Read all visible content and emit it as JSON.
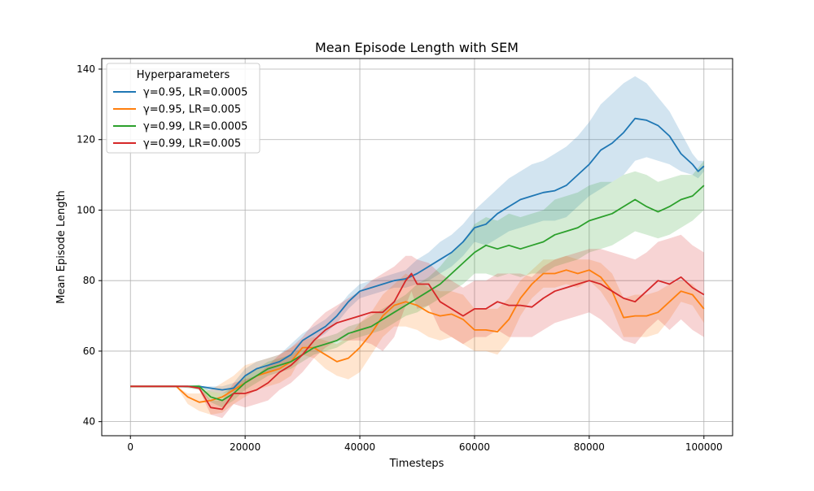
{
  "chart_data": {
    "type": "line",
    "title": "Mean Episode Length with SEM",
    "xlabel": "Timesteps",
    "ylabel": "Mean Episode Length",
    "xlim": [
      -5000,
      105000
    ],
    "ylim": [
      36,
      143
    ],
    "xticks": [
      0,
      20000,
      40000,
      60000,
      80000,
      100000
    ],
    "yticks": [
      40,
      60,
      80,
      100,
      120,
      140
    ],
    "grid": true,
    "legend": {
      "title": "Hyperparameters",
      "placement": "upper-left"
    },
    "series": [
      {
        "name": "γ=0.95, LR=0.0005",
        "color": "#1f77b4",
        "x": [
          0,
          8000,
          10000,
          12000,
          14000,
          16000,
          18000,
          20000,
          22000,
          24000,
          26000,
          28000,
          30000,
          32000,
          34000,
          36000,
          38000,
          40000,
          42000,
          44000,
          46000,
          48000,
          50000,
          52000,
          54000,
          56000,
          58000,
          60000,
          62000,
          64000,
          66000,
          68000,
          70000,
          72000,
          74000,
          76000,
          78000,
          80000,
          82000,
          84000,
          86000,
          88000,
          90000,
          92000,
          94000,
          96000,
          98000,
          99000,
          100000
        ],
        "y": [
          50,
          50,
          50,
          50,
          49.5,
          49,
          49.5,
          53,
          55,
          56,
          57,
          59,
          63,
          65,
          67,
          70,
          74,
          77,
          78,
          79,
          80,
          80.5,
          82,
          84,
          86,
          88,
          91,
          95,
          96,
          99,
          101,
          103,
          104,
          105,
          105.5,
          107,
          110,
          113,
          117,
          119,
          122,
          126,
          125.5,
          124,
          121,
          116,
          113,
          111,
          112.5
        ],
        "upper": [
          50,
          50,
          50,
          50,
          50,
          50,
          51,
          55,
          57,
          58,
          59,
          62,
          65,
          67,
          69,
          72,
          76,
          79,
          80,
          81,
          82,
          83,
          86,
          88,
          91,
          93,
          96,
          100,
          103,
          106,
          109,
          111,
          113,
          114,
          116,
          118,
          121,
          125,
          130,
          133,
          136,
          138,
          136,
          132,
          128,
          122,
          116,
          114,
          114
        ],
        "lower": [
          50,
          50,
          50,
          50,
          48.5,
          48,
          48.5,
          51,
          53,
          54,
          55,
          57,
          61,
          63,
          65,
          68,
          72,
          75,
          76,
          77,
          78,
          78,
          79,
          80,
          82,
          84,
          87,
          91,
          90,
          92,
          94,
          95,
          96,
          97,
          97,
          98,
          101,
          104,
          106,
          108,
          110,
          114,
          115,
          114,
          113,
          111,
          110,
          109,
          111
        ]
      },
      {
        "name": "γ=0.95, LR=0.005",
        "color": "#ff7f0e",
        "x": [
          0,
          8000,
          10000,
          12000,
          14000,
          16000,
          18000,
          20000,
          22000,
          24000,
          26000,
          28000,
          30000,
          32000,
          34000,
          36000,
          38000,
          40000,
          42000,
          44000,
          46000,
          48000,
          50000,
          52000,
          54000,
          56000,
          58000,
          60000,
          62000,
          64000,
          66000,
          68000,
          70000,
          72000,
          74000,
          76000,
          78000,
          80000,
          82000,
          84000,
          86000,
          88000,
          90000,
          92000,
          94000,
          96000,
          98000,
          100000
        ],
        "y": [
          50,
          50,
          47,
          45.5,
          46,
          47,
          49,
          51,
          53,
          54,
          55,
          57,
          61,
          61,
          59,
          57,
          58,
          61,
          65,
          70,
          73,
          74,
          73,
          71,
          70,
          70.5,
          69,
          66,
          66,
          65.5,
          69,
          75,
          79,
          82,
          82,
          83,
          82,
          83,
          81,
          77,
          69.5,
          70,
          70,
          71,
          74,
          77,
          76,
          72
        ],
        "upper": [
          50,
          50,
          48,
          48,
          49,
          51,
          53,
          56,
          57,
          58,
          59,
          61,
          63,
          64,
          63,
          62,
          64,
          68,
          71,
          76,
          79,
          82,
          80,
          78,
          77,
          77,
          76,
          72,
          72,
          72,
          75,
          80,
          83,
          86,
          86,
          87,
          86,
          86,
          85,
          82,
          75,
          76,
          76,
          77,
          79,
          80,
          79,
          75
        ],
        "lower": [
          50,
          50,
          45,
          43,
          42,
          42.5,
          45,
          47,
          49,
          50,
          51,
          53,
          59,
          58,
          55,
          53,
          52,
          54,
          59,
          64,
          67,
          67,
          66,
          64,
          63,
          64,
          62,
          60,
          60,
          59,
          63,
          70,
          75,
          78,
          78,
          79,
          78,
          80,
          77,
          72,
          64,
          64,
          64,
          65,
          69,
          74,
          73,
          68
        ]
      },
      {
        "name": "γ=0.99, LR=0.0005",
        "color": "#2ca02c",
        "x": [
          0,
          8000,
          10000,
          12000,
          14000,
          16000,
          18000,
          20000,
          22000,
          24000,
          26000,
          28000,
          30000,
          32000,
          34000,
          36000,
          38000,
          40000,
          42000,
          44000,
          46000,
          48000,
          50000,
          52000,
          54000,
          56000,
          58000,
          60000,
          62000,
          64000,
          66000,
          68000,
          70000,
          72000,
          74000,
          76000,
          78000,
          80000,
          82000,
          84000,
          86000,
          88000,
          90000,
          92000,
          94000,
          96000,
          98000,
          100000
        ],
        "y": [
          50,
          50,
          50,
          50,
          47,
          46,
          48,
          51,
          53,
          55,
          56,
          57,
          59,
          61,
          62,
          63,
          65,
          66,
          67,
          69,
          71,
          73,
          75,
          77,
          79,
          82,
          85,
          88,
          90,
          89,
          90,
          89,
          90,
          91,
          93,
          94,
          95,
          97,
          98,
          99,
          101,
          103,
          101,
          99.5,
          101,
          103,
          104,
          107
        ],
        "upper": [
          50,
          50,
          50,
          50.5,
          48.5,
          48,
          50,
          53,
          55,
          57,
          58,
          59,
          61,
          63,
          64,
          65,
          67,
          68,
          70,
          72,
          74,
          76,
          79,
          81,
          84,
          88,
          91,
          96,
          98,
          97,
          99,
          98,
          99,
          100,
          103,
          104,
          105,
          107,
          108,
          108,
          110,
          111,
          110,
          108,
          109,
          110,
          110,
          114
        ],
        "lower": [
          50,
          50,
          49.5,
          49,
          45.5,
          44,
          46,
          49,
          51,
          53,
          54,
          55,
          57,
          59,
          60,
          61,
          63,
          64,
          65,
          66,
          68,
          70,
          71,
          73,
          75,
          77,
          79,
          82,
          82,
          81,
          82,
          81,
          82,
          82,
          84,
          85,
          86,
          88,
          89,
          90,
          92,
          94,
          93,
          92,
          93,
          95,
          97,
          100
        ]
      },
      {
        "name": "γ=0.99, LR=0.005",
        "color": "#d62728",
        "x": [
          0,
          8000,
          10000,
          12000,
          14000,
          16000,
          18000,
          20000,
          22000,
          24000,
          26000,
          28000,
          30000,
          32000,
          34000,
          36000,
          38000,
          40000,
          42000,
          44000,
          46000,
          48000,
          49000,
          50000,
          52000,
          54000,
          56000,
          58000,
          60000,
          62000,
          64000,
          66000,
          68000,
          70000,
          72000,
          74000,
          76000,
          78000,
          80000,
          82000,
          84000,
          86000,
          88000,
          90000,
          92000,
          94000,
          96000,
          98000,
          100000
        ],
        "y": [
          50,
          50,
          50,
          49.5,
          44,
          43.5,
          48,
          48,
          49,
          51,
          54,
          56,
          59,
          63,
          66,
          68,
          69,
          70,
          71,
          71,
          74,
          80,
          82,
          79,
          79,
          74,
          72,
          70,
          72,
          72,
          74,
          73,
          73,
          72.5,
          75,
          77,
          78,
          79,
          80,
          79,
          77,
          75,
          74,
          77,
          80,
          79,
          81,
          78,
          76
        ],
        "upper": [
          50,
          50,
          50,
          50,
          46,
          46,
          51,
          52,
          53,
          56,
          59,
          61,
          64,
          68,
          71,
          73,
          75,
          77,
          80,
          82,
          84,
          87,
          87,
          86,
          85,
          82,
          80,
          78,
          80,
          80,
          82,
          82,
          82,
          81,
          84,
          86,
          87,
          88,
          89,
          89,
          88,
          87,
          86,
          88,
          91,
          92,
          93,
          90,
          88
        ],
        "lower": [
          50,
          50,
          50,
          49,
          42,
          41,
          45,
          44,
          45,
          46,
          49,
          51,
          54,
          58,
          61,
          63,
          63,
          63,
          62,
          60,
          64,
          73,
          77,
          72,
          73,
          66,
          64,
          62,
          64,
          64,
          66,
          64,
          64,
          64,
          66,
          68,
          69,
          70,
          71,
          69,
          66,
          63,
          62,
          66,
          69,
          66,
          69,
          66,
          64
        ]
      }
    ]
  }
}
